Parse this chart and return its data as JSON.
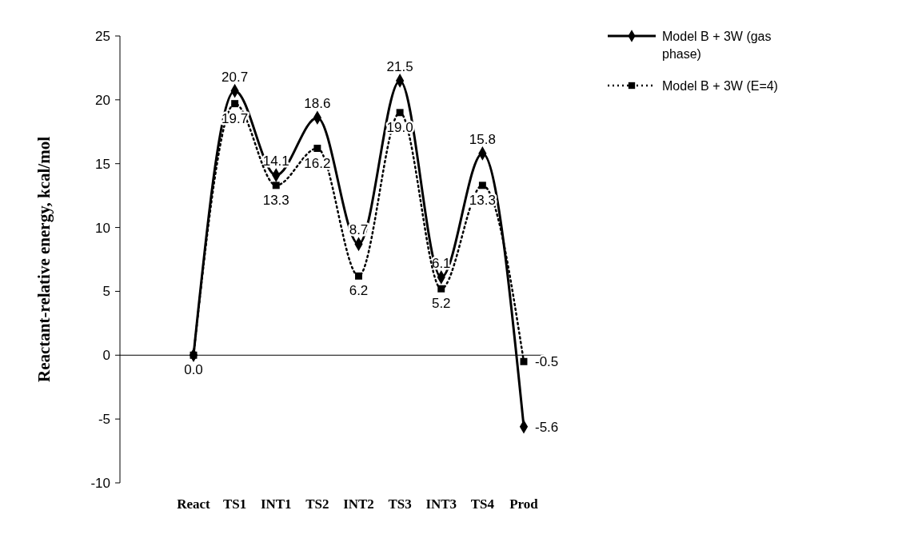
{
  "chart_data": {
    "type": "line",
    "ylabel": "Reactant-relative energy, kcal/mol",
    "categories": [
      "React",
      "TS1",
      "INT1",
      "TS2",
      "INT2",
      "TS3",
      "INT3",
      "TS4",
      "Prod"
    ],
    "ylim": [
      -10,
      25
    ],
    "yticks": [
      -10,
      -5,
      0,
      5,
      10,
      15,
      20,
      25
    ],
    "grid": false,
    "legend": "top right",
    "ref_lines": [
      {
        "axis": "y",
        "value": 0
      }
    ],
    "series": [
      {
        "name": "Model B + 3W (gas phase)",
        "color": "#000000",
        "marker": "diamond",
        "line_style": "solid",
        "values": [
          0.0,
          20.7,
          14.1,
          18.6,
          8.7,
          21.5,
          6.1,
          15.8,
          -5.6
        ],
        "value_labels": [
          "0.0",
          "20.7",
          "14.1",
          "18.6",
          "8.7",
          "21.5",
          "6.1",
          "15.8",
          "-5.6"
        ]
      },
      {
        "name": "Model B + 3W (E=4)",
        "color": "#000000",
        "marker": "square",
        "line_style": "dotted",
        "values": [
          0.0,
          19.7,
          13.3,
          16.2,
          6.2,
          19.0,
          5.2,
          13.3,
          -0.5
        ],
        "value_labels": [
          null,
          "19.7",
          "13.3",
          "16.2",
          "6.2",
          "19.0",
          "5.2",
          "13.3",
          "-0.5"
        ]
      }
    ]
  }
}
